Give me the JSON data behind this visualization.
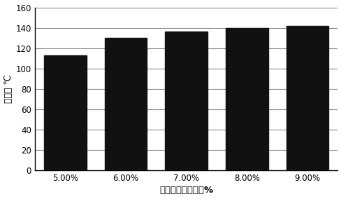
{
  "categories": [
    "5.00%",
    "6.00%",
    "7.00%",
    "8.00%",
    "9.00%"
  ],
  "values": [
    113,
    130,
    136,
    140,
    142
  ],
  "bar_color": "#111111",
  "bar_width": 0.7,
  "ylabel": "接触角 ℃",
  "xlabel": "罧甲基纤维素用量%",
  "ylim": [
    0,
    160
  ],
  "yticks": [
    0,
    20,
    40,
    60,
    80,
    100,
    120,
    140,
    160
  ],
  "background_color": "#ffffff",
  "grid_color": "#888888",
  "grid_linewidth": 0.8
}
